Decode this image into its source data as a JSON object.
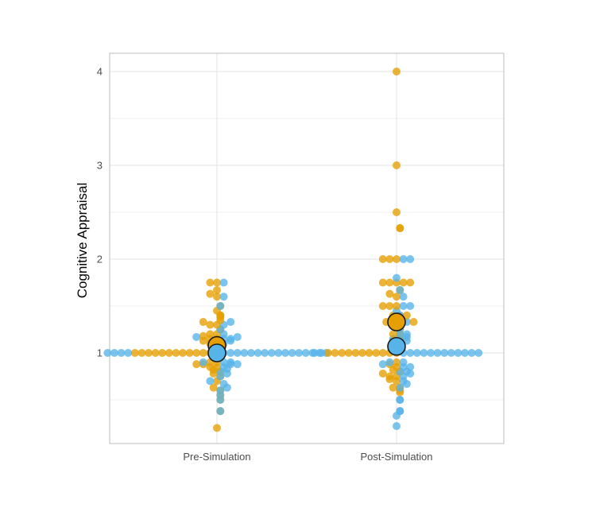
{
  "chart_data": {
    "type": "scatter",
    "subtype": "beeswarm",
    "title": "",
    "xlabel": "",
    "ylabel": "Cognitive Appraisal",
    "categories": [
      "Pre-Simulation",
      "Post-Simulation"
    ],
    "yticks": [
      "1",
      "2",
      "3",
      "4"
    ],
    "ylim": [
      0.05,
      4.2
    ],
    "grid": true,
    "legend": "none",
    "colors": {
      "group_a": "#E69F00",
      "group_b": "#56B4E9",
      "outline": "#1a1a1a"
    },
    "series": [
      {
        "color": "#E69F00",
        "points": [
          {
            "category": "Pre-Simulation",
            "values": [
              0.2,
              0.38,
              0.5,
              0.55,
              0.6,
              0.63,
              0.7,
              0.75,
              0.78,
              0.8,
              0.82,
              0.85,
              0.85,
              0.88,
              0.88,
              0.9,
              0.9,
              1.0,
              1.0,
              1.0,
              1.0,
              1.0,
              1.0,
              1.0,
              1.0,
              1.0,
              1.0,
              1.0,
              1.0,
              1.0,
              1.05,
              1.1,
              1.1,
              1.13,
              1.15,
              1.15,
              1.18,
              1.2,
              1.2,
              1.25,
              1.3,
              1.3,
              1.33,
              1.35,
              1.38,
              1.4,
              1.4,
              1.45,
              1.5,
              1.6,
              1.63,
              1.67,
              1.75,
              1.75
            ]
          },
          {
            "category": "Post-Simulation",
            "values": [
              0.58,
              0.6,
              0.63,
              0.63,
              0.7,
              0.72,
              0.75,
              0.75,
              0.78,
              0.8,
              0.82,
              0.85,
              0.88,
              0.9,
              1.0,
              1.0,
              1.0,
              1.0,
              1.0,
              1.0,
              1.0,
              1.0,
              1.0,
              1.0,
              1.0,
              1.1,
              1.13,
              1.15,
              1.2,
              1.2,
              1.25,
              1.3,
              1.33,
              1.33,
              1.33,
              1.35,
              1.4,
              1.4,
              1.4,
              1.5,
              1.5,
              1.5,
              1.6,
              1.63,
              1.67,
              1.75,
              1.75,
              1.75,
              1.75,
              1.75,
              2.0,
              2.0,
              2.0,
              2.33,
              2.33,
              2.5,
              3.0,
              4.0
            ]
          }
        ],
        "mean": [
          1.08,
          1.33
        ]
      },
      {
        "color": "#56B4E9",
        "points": [
          {
            "category": "Pre-Simulation",
            "values": [
              0.38,
              0.5,
              0.55,
              0.6,
              0.63,
              0.67,
              0.7,
              0.75,
              0.78,
              0.8,
              0.83,
              0.85,
              0.88,
              0.88,
              0.9,
              0.9,
              0.9,
              1.0,
              1.0,
              1.0,
              1.0,
              1.0,
              1.0,
              1.0,
              1.0,
              1.0,
              1.0,
              1.0,
              1.0,
              1.0,
              1.0,
              1.0,
              1.0,
              1.0,
              1.0,
              1.0,
              1.0,
              1.1,
              1.13,
              1.15,
              1.15,
              1.17,
              1.17,
              1.2,
              1.25,
              1.3,
              1.33,
              1.5,
              1.6,
              1.75
            ]
          },
          {
            "category": "Post-Simulation",
            "values": [
              0.22,
              0.33,
              0.38,
              0.38,
              0.5,
              0.5,
              0.63,
              0.67,
              0.7,
              0.75,
              0.78,
              0.8,
              0.8,
              0.85,
              0.85,
              0.88,
              0.9,
              0.9,
              1.0,
              1.0,
              1.0,
              1.0,
              1.0,
              1.0,
              1.0,
              1.0,
              1.0,
              1.0,
              1.0,
              1.0,
              1.0,
              1.0,
              1.1,
              1.13,
              1.15,
              1.15,
              1.17,
              1.2,
              1.2,
              1.25,
              1.33,
              1.33,
              1.38,
              1.4,
              1.45,
              1.5,
              1.5,
              1.6,
              1.67,
              1.8,
              2.0,
              2.0
            ]
          }
        ],
        "mean": [
          1.0,
          1.07
        ]
      }
    ]
  }
}
